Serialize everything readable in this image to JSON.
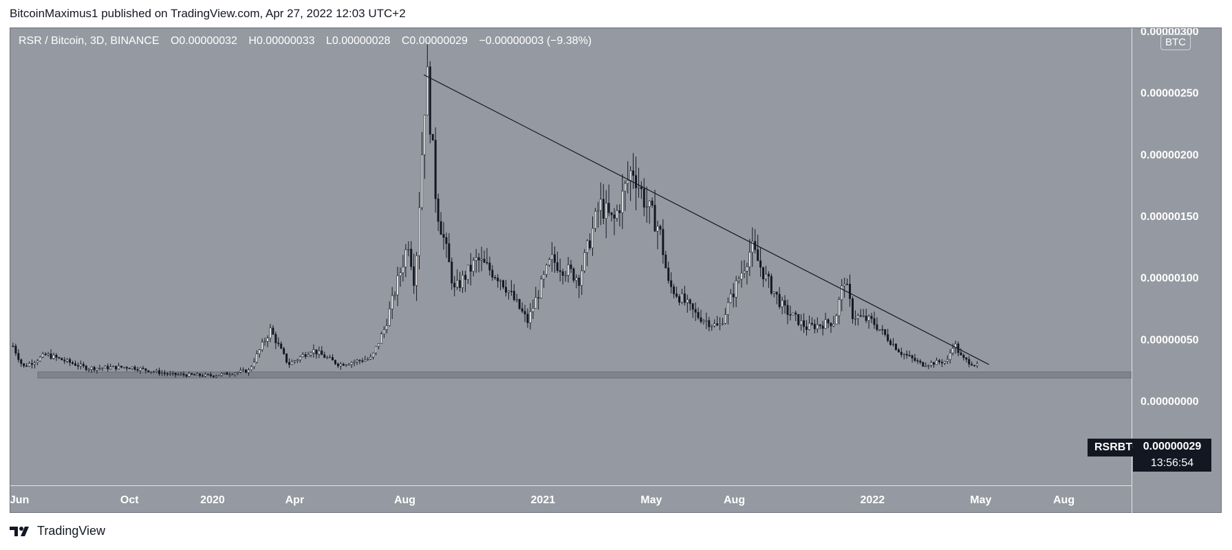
{
  "header": {
    "attribution": "BitcoinMaximus1 published on TradingView.com, Apr 27, 2022 12:03 UTC+2"
  },
  "legend": {
    "symbol": "RSR / Bitcoin, 3D, BINANCE",
    "open_label": "O",
    "open": "0.00000032",
    "high_label": "H",
    "high": "0.00000033",
    "low_label": "L",
    "low": "0.00000028",
    "close_label": "C",
    "close": "0.00000029",
    "change": "−0.00000003 (−9.38%)"
  },
  "currency_badge": "BTC",
  "last_price": {
    "symbol": "RSRBTC",
    "price": "0.00000029",
    "countdown": "13:56:54"
  },
  "footer": {
    "brand": "TradingView"
  },
  "colors": {
    "background": "#9599a1",
    "candle": "#131722",
    "support_zone": "#7f838b",
    "trendline": "#131722"
  },
  "chart_data": {
    "type": "candlestick",
    "title": "RSR / Bitcoin, 3D, BINANCE",
    "y_tick_labels": [
      "0.00000300",
      "0.00000250",
      "0.00000200",
      "0.00000150",
      "0.00000100",
      "0.00000050",
      "0.00000000"
    ],
    "x_tick_labels": [
      "Jun",
      "Oct",
      "2020",
      "Apr",
      "Aug",
      "2021",
      "May",
      "Aug",
      "2022",
      "May",
      "Aug"
    ],
    "ylim": [
      0.0,
      3e-06
    ],
    "xlim": [
      "2019-05-22",
      "2022-10-15"
    ],
    "ohlc_approx_path": [
      [
        "2019-05-25",
        4.5e-07
      ],
      [
        "2019-06-05",
        2.8e-07
      ],
      [
        "2019-07-01",
        3.8e-07
      ],
      [
        "2019-08-15",
        2.7e-07
      ],
      [
        "2019-10-01",
        2.8e-07
      ],
      [
        "2019-11-15",
        2.2e-07
      ],
      [
        "2020-01-01",
        2.1e-07
      ],
      [
        "2020-02-10",
        2.5e-07
      ],
      [
        "2020-03-05",
        5.8e-07
      ],
      [
        "2020-03-25",
        3e-07
      ],
      [
        "2020-04-20",
        4.2e-07
      ],
      [
        "2020-05-20",
        3e-07
      ],
      [
        "2020-06-25",
        3.5e-07
      ],
      [
        "2020-07-10",
        6e-07
      ],
      [
        "2020-07-25",
        1e-06
      ],
      [
        "2020-08-05",
        1.3e-06
      ],
      [
        "2020-08-12",
        9.5e-07
      ],
      [
        "2020-08-25",
        2.7e-06
      ],
      [
        "2020-09-05",
        1.6e-06
      ],
      [
        "2020-09-25",
        9e-07
      ],
      [
        "2020-10-20",
        1.15e-06
      ],
      [
        "2020-11-15",
        1e-06
      ],
      [
        "2020-12-15",
        6.5e-07
      ],
      [
        "2021-01-10",
        1.15e-06
      ],
      [
        "2021-02-10",
        1e-06
      ],
      [
        "2021-03-05",
        1.6e-06
      ],
      [
        "2021-03-20",
        1.45e-06
      ],
      [
        "2021-04-10",
        1.9e-06
      ],
      [
        "2021-04-25",
        1.6e-06
      ],
      [
        "2021-05-10",
        1.4e-06
      ],
      [
        "2021-05-20",
        9.5e-07
      ],
      [
        "2021-06-20",
        7e-07
      ],
      [
        "2021-07-15",
        6e-07
      ],
      [
        "2021-08-20",
        1.25e-06
      ],
      [
        "2021-09-05",
        1e-06
      ],
      [
        "2021-09-25",
        7.5e-07
      ],
      [
        "2021-10-20",
        6e-07
      ],
      [
        "2021-11-20",
        6.5e-07
      ],
      [
        "2021-12-01",
        1e-06
      ],
      [
        "2021-12-10",
        7e-07
      ],
      [
        "2022-01-01",
        6.5e-07
      ],
      [
        "2022-02-01",
        4e-07
      ],
      [
        "2022-02-25",
        3e-07
      ],
      [
        "2022-03-25",
        3.3e-07
      ],
      [
        "2022-04-01",
        4.8e-07
      ],
      [
        "2022-04-10",
        3.5e-07
      ],
      [
        "2022-04-27",
        2.9e-07
      ]
    ],
    "trendline": {
      "from": [
        "2020-08-22",
        2.65e-06
      ],
      "to": [
        "2022-05-10",
        3e-07
      ]
    },
    "support_zone": {
      "from": "2019-05-22",
      "to": "2022-10-15",
      "y_low": 1.9e-07,
      "y_high": 2.4e-07
    }
  }
}
